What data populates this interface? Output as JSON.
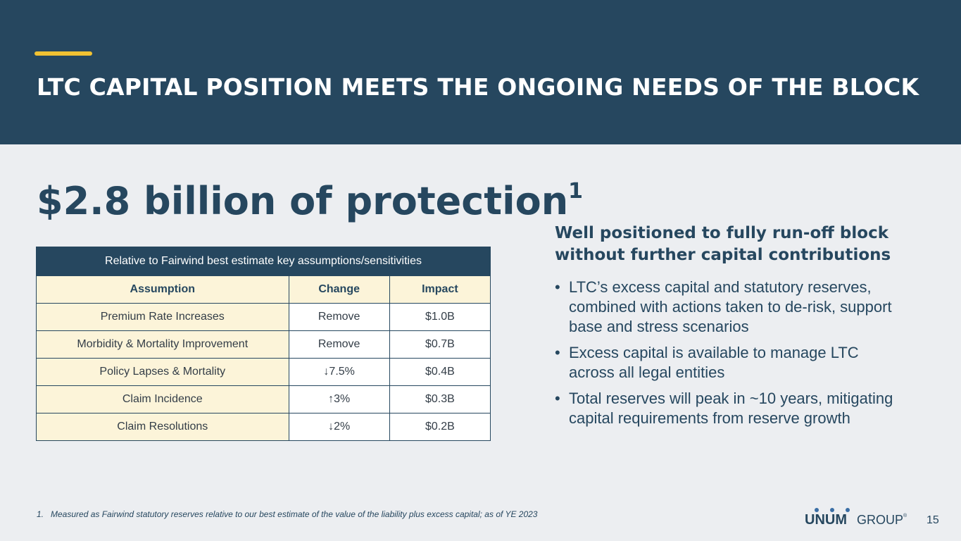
{
  "header": {
    "title": "LTC CAPITAL POSITION MEETS THE ONGOING NEEDS OF THE BLOCK"
  },
  "headline": {
    "text": "$2.8 billion of protection",
    "superscript": "1"
  },
  "table": {
    "caption": "Relative to Fairwind best estimate key assumptions/sensitivities",
    "columns": [
      "Assumption",
      "Change",
      "Impact"
    ],
    "rows": [
      [
        "Premium Rate Increases",
        "Remove",
        "$1.0B"
      ],
      [
        "Morbidity & Mortality Improvement",
        "Remove",
        "$0.7B"
      ],
      [
        "Policy Lapses & Mortality",
        "↓7.5%",
        "$0.4B"
      ],
      [
        "Claim Incidence",
        "↑3%",
        "$0.3B"
      ],
      [
        "Claim Resolutions",
        "↓2%",
        "$0.2B"
      ]
    ]
  },
  "right_panel": {
    "heading": "Well positioned to fully run-off block without further capital contributions",
    "bullets": [
      "LTC’s excess capital and statutory reserves, combined with actions taken to de-risk, support base and stress scenarios",
      "Excess capital is available to manage LTC across all legal entities",
      "Total reserves will peak in ~10 years, mitigating capital requirements from reserve growth"
    ]
  },
  "footnote": {
    "number": "1.",
    "text": "Measured as Fairwind statutory reserves relative to our best estimate of the value of the liability plus excess capital; as of YE 2023"
  },
  "logo": {
    "brand": "UNUM",
    "suffix": "GROUP",
    "mark": "®"
  },
  "page_number": "15",
  "colors": {
    "navy": "#26475f",
    "accent": "#f1c232",
    "cream": "#fcf4d9",
    "background": "#eceef1",
    "logo_blue": "#3a6ea5"
  }
}
